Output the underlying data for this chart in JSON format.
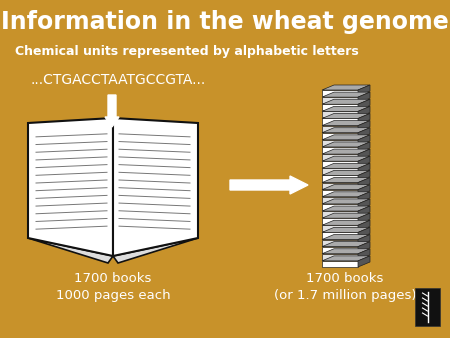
{
  "background_color": "#C8922A",
  "title": "Information in the wheat genome",
  "title_color": "#FFFFFF",
  "title_fontsize": 17,
  "subtitle": "Chemical units represented by alphabetic letters",
  "subtitle_color": "#FFFFFF",
  "subtitle_fontsize": 9,
  "dna_text": "...CTGACCTAATGCCGTA...",
  "dna_color": "#FFFFFF",
  "dna_fontsize": 10,
  "left_label_line1": "1700 books",
  "left_label_line2": "1000 pages each",
  "right_label_line1": "1700 books",
  "right_label_line2": "(or 1.7 million pages)",
  "label_color": "#FFFFFF",
  "label_fontsize": 9.5,
  "book_color": "#FFFFFF",
  "book_edge_color": "#111111",
  "arrow_color": "#FFFFFF",
  "stack_light": "#FFFFFF",
  "stack_dark": "#333333",
  "stack_side": "#888888"
}
